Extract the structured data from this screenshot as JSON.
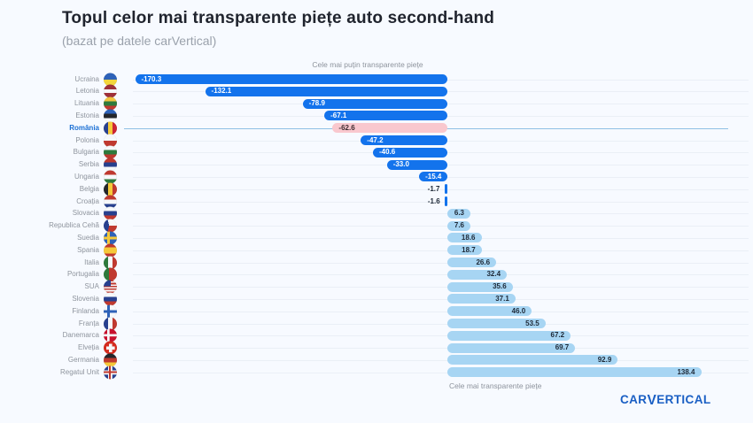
{
  "header": {
    "title": "Topul celor mai transparente piețe auto second-hand",
    "subtitle": "(bazat pe datele carVertical)"
  },
  "chart_data": {
    "type": "bar",
    "orientation": "horizontal",
    "title": "Topul celor mai transparente piețe auto second-hand",
    "subtitle": "(bazat pe datele carVertical)",
    "top_caption": "Cele mai puțin transparente piețe",
    "bottom_caption": "Cele mai transparente piețe",
    "highlight_country": "România",
    "xlim": [
      -180,
      150
    ],
    "legend": "none",
    "grid": "per-row faint horizontal lines",
    "categories": [
      "Ucraina",
      "Letonia",
      "Lituania",
      "Estonia",
      "România",
      "Polonia",
      "Bulgaria",
      "Serbia",
      "Ungaria",
      "Belgia",
      "Croația",
      "Slovacia",
      "Republica Cehă",
      "Suedia",
      "Spania",
      "Italia",
      "Portugalia",
      "SUA",
      "Slovenia",
      "Finlanda",
      "Franța",
      "Danemarca",
      "Elveția",
      "Germania",
      "Regatul Unit"
    ],
    "values": [
      -170.3,
      -132.1,
      -78.9,
      -67.1,
      -62.6,
      -47.2,
      -40.6,
      -33.0,
      -15.4,
      -1.7,
      -1.6,
      6.3,
      7.6,
      18.6,
      18.7,
      26.6,
      32.4,
      35.6,
      37.1,
      46.0,
      53.5,
      67.2,
      69.7,
      92.9,
      138.4
    ],
    "flags": [
      "ua",
      "lv",
      "lt",
      "ee",
      "ro",
      "pl",
      "bg",
      "rs",
      "hu",
      "be",
      "hr",
      "sk",
      "cz",
      "se",
      "es",
      "it",
      "pt",
      "us",
      "si",
      "fi",
      "fr",
      "dk",
      "ch",
      "de",
      "gb"
    ],
    "colors": {
      "negative_bar": "#1373ec",
      "positive_bar": "#a7d5f3",
      "highlight_bar": "#f9c8ce",
      "highlight_line": "#8fc0e4",
      "value_on_dark": "#ffffff",
      "value_dark": "#1d2836",
      "background": "#f7faff"
    }
  },
  "footer": {
    "logo": {
      "car": "CAR",
      "v": "V",
      "ertical": "ERTICAL"
    }
  }
}
